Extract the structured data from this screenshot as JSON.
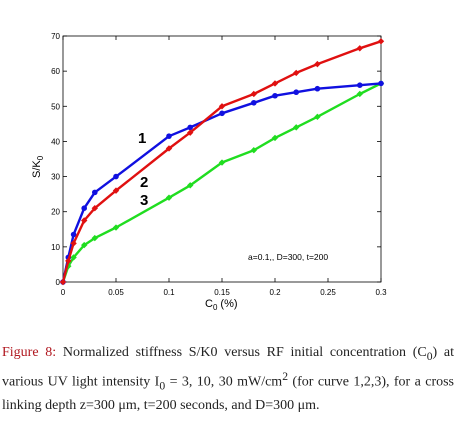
{
  "chart_data": {
    "type": "line",
    "xlabel": "C",
    "xlabel_sub": "0",
    "xlabel_unit": "(%)",
    "ylabel": "S/K",
    "ylabel_sub": "0",
    "xlim": [
      0,
      0.3
    ],
    "ylim": [
      0,
      70
    ],
    "xticks": [
      0,
      0.05,
      0.1,
      0.15,
      0.2,
      0.25,
      0.3
    ],
    "xtick_labels": [
      "0",
      "0.05",
      "0.1",
      "0.15",
      "0.2",
      "0.25",
      "0.3"
    ],
    "yticks": [
      0,
      10,
      20,
      30,
      40,
      50,
      60,
      70
    ],
    "ytick_labels": [
      "0",
      "10",
      "20",
      "30",
      "40",
      "50",
      "60",
      "70"
    ],
    "grid": false,
    "annotation": "a=0.1,, D=300, t=200",
    "series": [
      {
        "name": "1",
        "color": "#1010e0",
        "marker": "circle",
        "x": [
          0,
          0.005,
          0.01,
          0.02,
          0.03,
          0.05,
          0.1,
          0.12,
          0.15,
          0.18,
          0.2,
          0.22,
          0.24,
          0.28,
          0.3
        ],
        "y": [
          0,
          7,
          13.5,
          21,
          25.5,
          30,
          41.5,
          44,
          48,
          51,
          53,
          54,
          55,
          56,
          56.5
        ]
      },
      {
        "name": "2",
        "color": "#e01010",
        "marker": "diamond",
        "x": [
          0,
          0.005,
          0.01,
          0.02,
          0.03,
          0.05,
          0.1,
          0.12,
          0.15,
          0.18,
          0.2,
          0.22,
          0.24,
          0.28,
          0.3
        ],
        "y": [
          0,
          6,
          11,
          17.5,
          21,
          26,
          38,
          42.5,
          50,
          53.5,
          56.5,
          59.5,
          62,
          66.5,
          68.5
        ]
      },
      {
        "name": "3",
        "color": "#20dd20",
        "marker": "diamond",
        "x": [
          0,
          0.005,
          0.01,
          0.02,
          0.03,
          0.05,
          0.1,
          0.12,
          0.15,
          0.18,
          0.2,
          0.22,
          0.24,
          0.28,
          0.3
        ],
        "y": [
          0,
          4.5,
          7,
          10.5,
          12.5,
          15.5,
          24,
          27.5,
          34,
          37.5,
          41,
          44,
          47,
          53.5,
          56.5
        ]
      }
    ]
  },
  "caption": {
    "lead": "Figure 8:",
    "t1": " Normalized stiffness S/K0 versus RF initial concentration (C",
    "s1": "0",
    "t2": ") at various UV light intensity I",
    "s2": "0",
    "t3": " = 3, 10, 30 mW/cm",
    "s3": "2",
    "t4": " (for curve 1,2,3), for a cross linking depth z=300 μm, t=200 seconds, and D=300 μm."
  }
}
